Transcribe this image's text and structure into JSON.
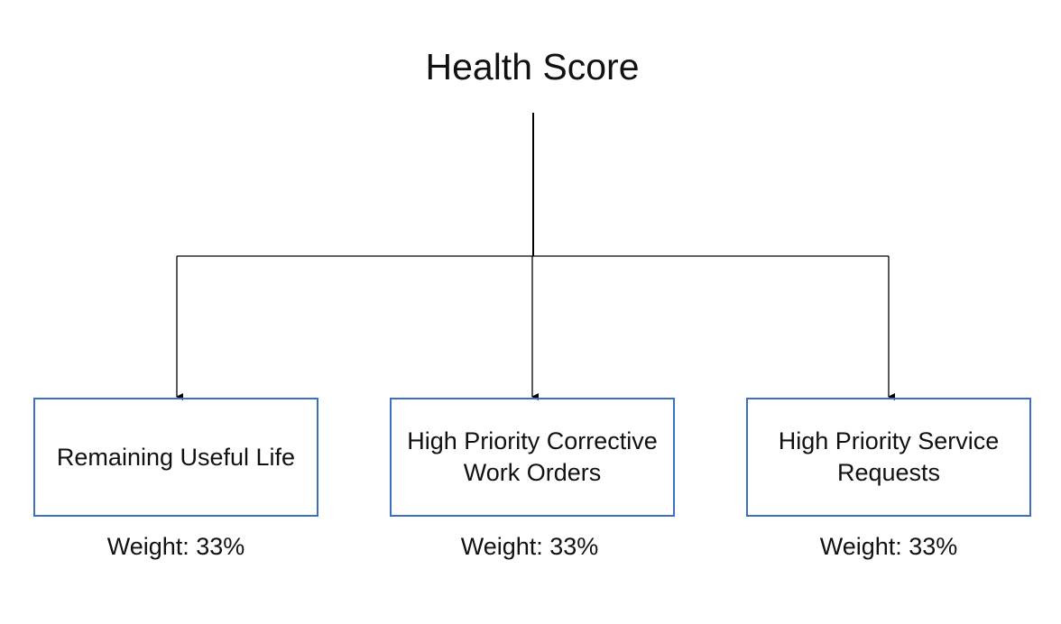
{
  "title": "Health Score",
  "factors": [
    {
      "label": "Remaining Useful Life",
      "weight": "Weight: 33%"
    },
    {
      "label": "High Priority Corrective Work Orders",
      "weight": "Weight: 33%"
    },
    {
      "label": "High Priority Service Requests",
      "weight": "Weight: 33%"
    }
  ],
  "colors": {
    "box_border": "#3a6fc4",
    "connector": "#000000",
    "text": "#111111"
  }
}
